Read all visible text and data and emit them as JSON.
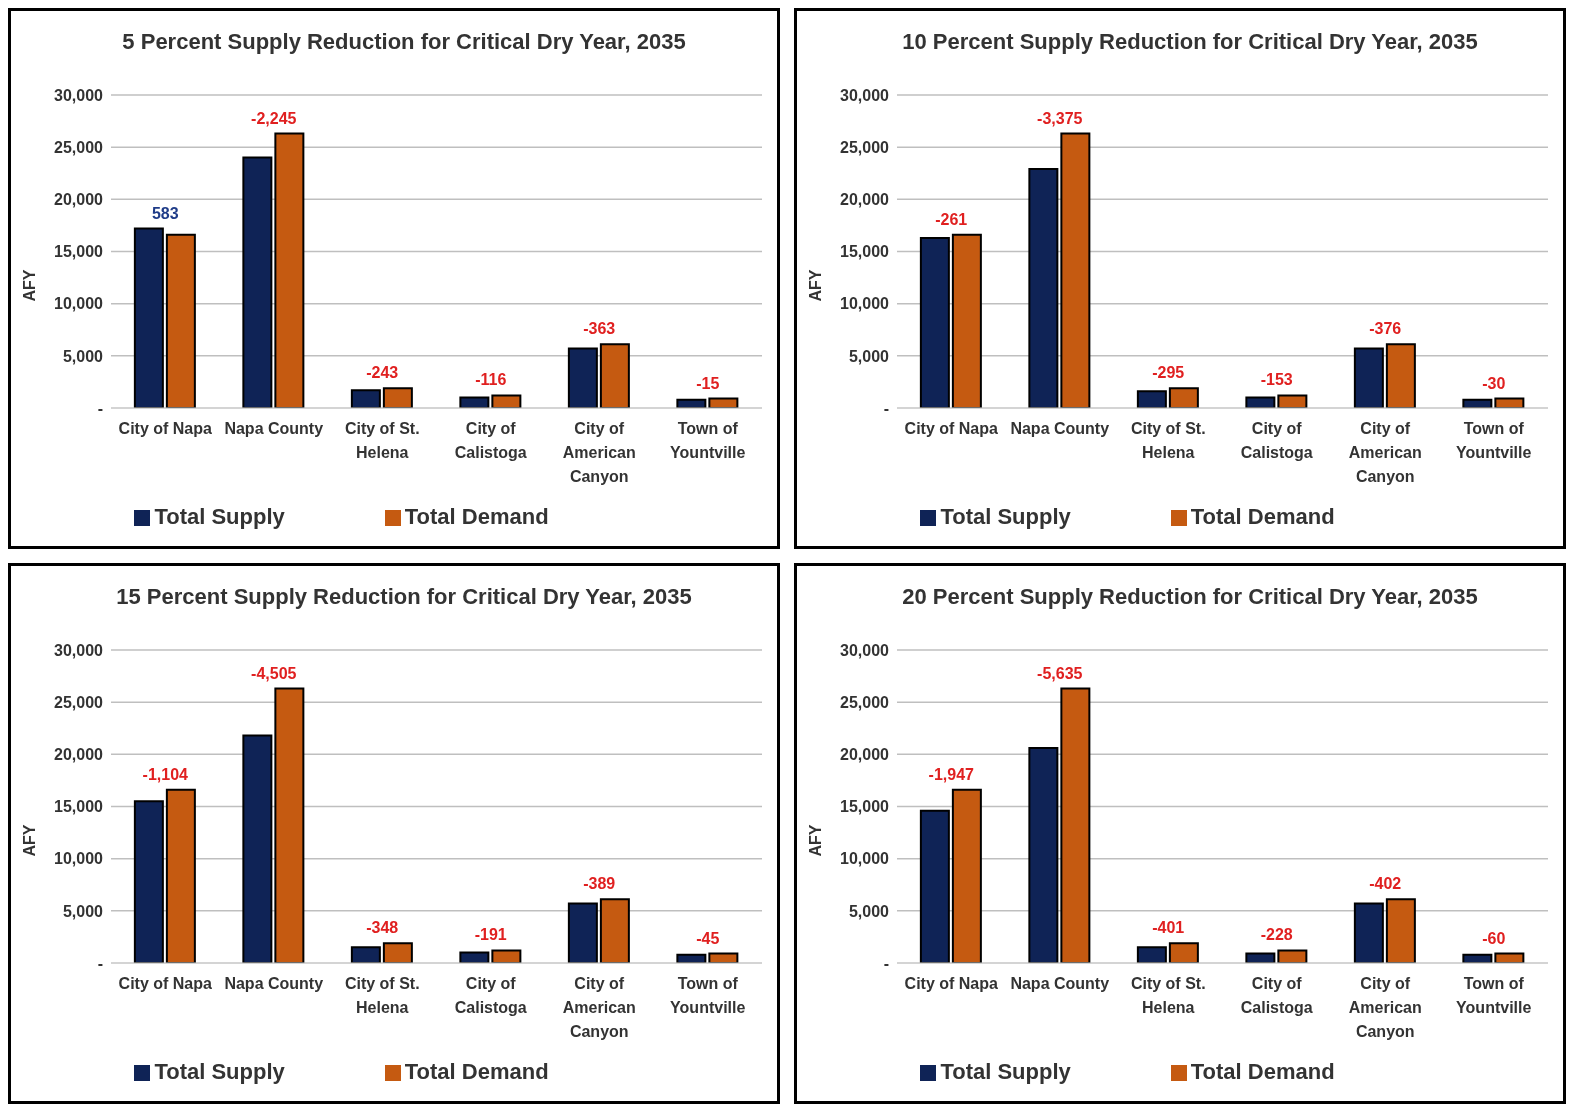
{
  "chart_data": [
    {
      "type": "bar",
      "title": "5 Percent Supply Reduction for Critical Dry Year, 2035",
      "ylabel": "AFY",
      "categories": [
        "City of Napa",
        "Napa County",
        "City of St. Helena",
        "City of Calistoga",
        "City of American Canyon",
        "Town of Yountville"
      ],
      "series": [
        {
          "name": "Total Supply",
          "color": "#0f2356",
          "values": [
            17200,
            24000,
            1700,
            1000,
            5700,
            800
          ]
        },
        {
          "name": "Total Demand",
          "color": "#c55a11",
          "values": [
            16600,
            26300,
            1900,
            1200,
            6100,
            900
          ]
        }
      ],
      "ylim": [
        0,
        30000
      ],
      "yticks": [
        {
          "value": 0,
          "label": "-"
        },
        {
          "value": 5000,
          "label": "5,000"
        },
        {
          "value": 10000,
          "label": "10,000"
        },
        {
          "value": 15000,
          "label": "15,000"
        },
        {
          "value": 20000,
          "label": "20,000"
        },
        {
          "value": 25000,
          "label": "25,000"
        },
        {
          "value": 30000,
          "label": "30,000"
        }
      ],
      "annotations": [
        {
          "text": "583",
          "x": "City of Napa",
          "y": 17200
        },
        {
          "text": "-2,245",
          "x": "Napa County",
          "y": 26300
        },
        {
          "text": "-243",
          "x": "City of St. Helena",
          "y": 1900
        },
        {
          "text": "-116",
          "x": "City of Calistoga",
          "y": 1200
        },
        {
          "text": "-363",
          "x": "City of American Canyon",
          "y": 6100
        },
        {
          "text": "-15",
          "x": "Town of Yountville",
          "y": 900
        }
      ],
      "grid": "y",
      "legend": "bottom"
    },
    {
      "type": "bar",
      "title": "10 Percent Supply Reduction for Critical Dry Year, 2035",
      "ylabel": "AFY",
      "categories": [
        "City of Napa",
        "Napa County",
        "City of St. Helena",
        "City of Calistoga",
        "City of American Canyon",
        "Town of Yountville"
      ],
      "series": [
        {
          "name": "Total Supply",
          "color": "#0f2356",
          "values": [
            16300,
            22900,
            1600,
            1000,
            5700,
            800
          ]
        },
        {
          "name": "Total Demand",
          "color": "#c55a11",
          "values": [
            16600,
            26300,
            1900,
            1200,
            6100,
            900
          ]
        }
      ],
      "ylim": [
        0,
        30000
      ],
      "yticks": [
        {
          "value": 0,
          "label": "-"
        },
        {
          "value": 5000,
          "label": "5,000"
        },
        {
          "value": 10000,
          "label": "10,000"
        },
        {
          "value": 15000,
          "label": "15,000"
        },
        {
          "value": 20000,
          "label": "20,000"
        },
        {
          "value": 25000,
          "label": "25,000"
        },
        {
          "value": 30000,
          "label": "30,000"
        }
      ],
      "annotations": [
        {
          "text": "-261",
          "x": "City of Napa",
          "y": 16600
        },
        {
          "text": "-3,375",
          "x": "Napa County",
          "y": 26300
        },
        {
          "text": "-295",
          "x": "City of St. Helena",
          "y": 1900
        },
        {
          "text": "-153",
          "x": "City of Calistoga",
          "y": 1200
        },
        {
          "text": "-376",
          "x": "City of American Canyon",
          "y": 6100
        },
        {
          "text": "-30",
          "x": "Town of Yountville",
          "y": 900
        }
      ],
      "grid": "y",
      "legend": "bottom"
    },
    {
      "type": "bar",
      "title": "15 Percent Supply Reduction for Critical Dry Year, 2035",
      "ylabel": "AFY",
      "categories": [
        "City of Napa",
        "Napa County",
        "City of St. Helena",
        "City of Calistoga",
        "City of American Canyon",
        "Town of Yountville"
      ],
      "series": [
        {
          "name": "Total Supply",
          "color": "#0f2356",
          "values": [
            15500,
            21800,
            1500,
            1000,
            5700,
            800
          ]
        },
        {
          "name": "Total Demand",
          "color": "#c55a11",
          "values": [
            16600,
            26300,
            1900,
            1200,
            6100,
            900
          ]
        }
      ],
      "ylim": [
        0,
        30000
      ],
      "yticks": [
        {
          "value": 0,
          "label": "-"
        },
        {
          "value": 5000,
          "label": "5,000"
        },
        {
          "value": 10000,
          "label": "10,000"
        },
        {
          "value": 15000,
          "label": "15,000"
        },
        {
          "value": 20000,
          "label": "20,000"
        },
        {
          "value": 25000,
          "label": "25,000"
        },
        {
          "value": 30000,
          "label": "30,000"
        }
      ],
      "annotations": [
        {
          "text": "-1,104",
          "x": "City of Napa",
          "y": 16600
        },
        {
          "text": "-4,505",
          "x": "Napa County",
          "y": 26300
        },
        {
          "text": "-348",
          "x": "City of St. Helena",
          "y": 1900
        },
        {
          "text": "-191",
          "x": "City of Calistoga",
          "y": 1200
        },
        {
          "text": "-389",
          "x": "City of American Canyon",
          "y": 6100
        },
        {
          "text": "-45",
          "x": "Town of Yountville",
          "y": 900
        }
      ],
      "grid": "y",
      "legend": "bottom"
    },
    {
      "type": "bar",
      "title": "20 Percent Supply Reduction for Critical Dry Year, 2035",
      "ylabel": "AFY",
      "categories": [
        "City of Napa",
        "Napa County",
        "City of St. Helena",
        "City of Calistoga",
        "City of American Canyon",
        "Town of Yountville"
      ],
      "series": [
        {
          "name": "Total Supply",
          "color": "#0f2356",
          "values": [
            14600,
            20600,
            1500,
            900,
            5700,
            800
          ]
        },
        {
          "name": "Total Demand",
          "color": "#c55a11",
          "values": [
            16600,
            26300,
            1900,
            1200,
            6100,
            900
          ]
        }
      ],
      "ylim": [
        0,
        30000
      ],
      "yticks": [
        {
          "value": 0,
          "label": "-"
        },
        {
          "value": 5000,
          "label": "5,000"
        },
        {
          "value": 10000,
          "label": "10,000"
        },
        {
          "value": 15000,
          "label": "15,000"
        },
        {
          "value": 20000,
          "label": "20,000"
        },
        {
          "value": 25000,
          "label": "25,000"
        },
        {
          "value": 30000,
          "label": "30,000"
        }
      ],
      "annotations": [
        {
          "text": "-1,947",
          "x": "City of Napa",
          "y": 16600
        },
        {
          "text": "-5,635",
          "x": "Napa County",
          "y": 26300
        },
        {
          "text": "-401",
          "x": "City of St. Helena",
          "y": 1900
        },
        {
          "text": "-228",
          "x": "City of Calistoga",
          "y": 1200
        },
        {
          "text": "-402",
          "x": "City of American Canyon",
          "y": 6100
        },
        {
          "text": "-60",
          "x": "Town of Yountville",
          "y": 900
        }
      ],
      "grid": "y",
      "legend": "bottom"
    }
  ]
}
